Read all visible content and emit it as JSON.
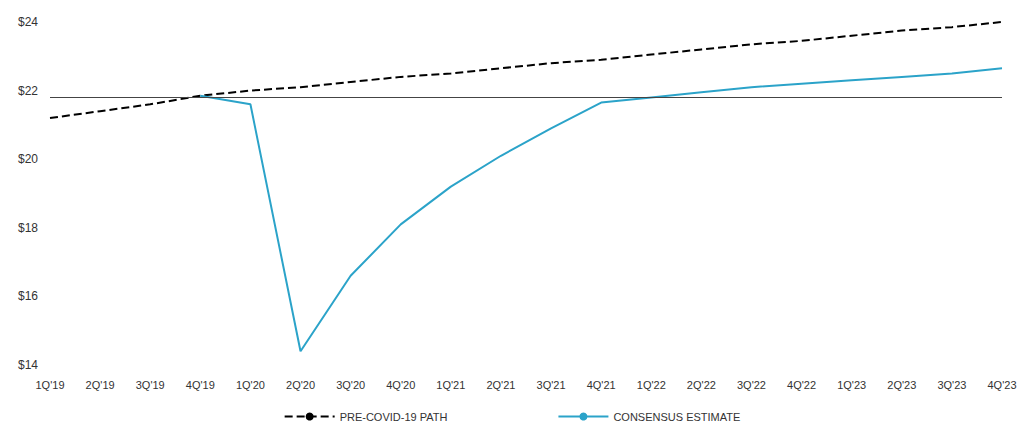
{
  "chart_data": {
    "type": "line",
    "categories": [
      "1Q'19",
      "2Q'19",
      "3Q'19",
      "4Q'19",
      "1Q'20",
      "2Q'20",
      "3Q'20",
      "4Q'20",
      "1Q'21",
      "2Q'21",
      "3Q'21",
      "4Q'21",
      "1Q'22",
      "2Q'22",
      "3Q'22",
      "4Q'22",
      "1Q'23",
      "2Q'23",
      "3Q'23",
      "4Q'23"
    ],
    "series": [
      {
        "name": "PRE-COVID-19 PATH",
        "color": "#000000",
        "line_style": "dashed",
        "marker": "none",
        "values": [
          21.2,
          21.4,
          21.6,
          21.85,
          22.0,
          22.1,
          22.25,
          22.4,
          22.5,
          22.65,
          22.8,
          22.9,
          23.05,
          23.2,
          23.35,
          23.45,
          23.6,
          23.75,
          23.85,
          24.0
        ]
      },
      {
        "name": "CONSENSUS ESTIMATE",
        "color": "#2ba3c9",
        "line_style": "solid",
        "marker": "none",
        "values": [
          null,
          null,
          null,
          21.85,
          21.6,
          14.4,
          16.6,
          18.1,
          19.2,
          20.1,
          20.9,
          21.65,
          21.8,
          21.95,
          22.1,
          22.2,
          22.3,
          22.4,
          22.5,
          22.65
        ]
      }
    ],
    "hline": 21.8,
    "ylim": [
      14,
      24
    ],
    "yticks": [
      {
        "value": 14,
        "label": "$14"
      },
      {
        "value": 16,
        "label": "$16"
      },
      {
        "value": 18,
        "label": "$18"
      },
      {
        "value": 20,
        "label": "$20"
      },
      {
        "value": 22,
        "label": "$22"
      },
      {
        "value": 24,
        "label": "$24"
      }
    ],
    "grid": false,
    "legend": "bottom"
  }
}
